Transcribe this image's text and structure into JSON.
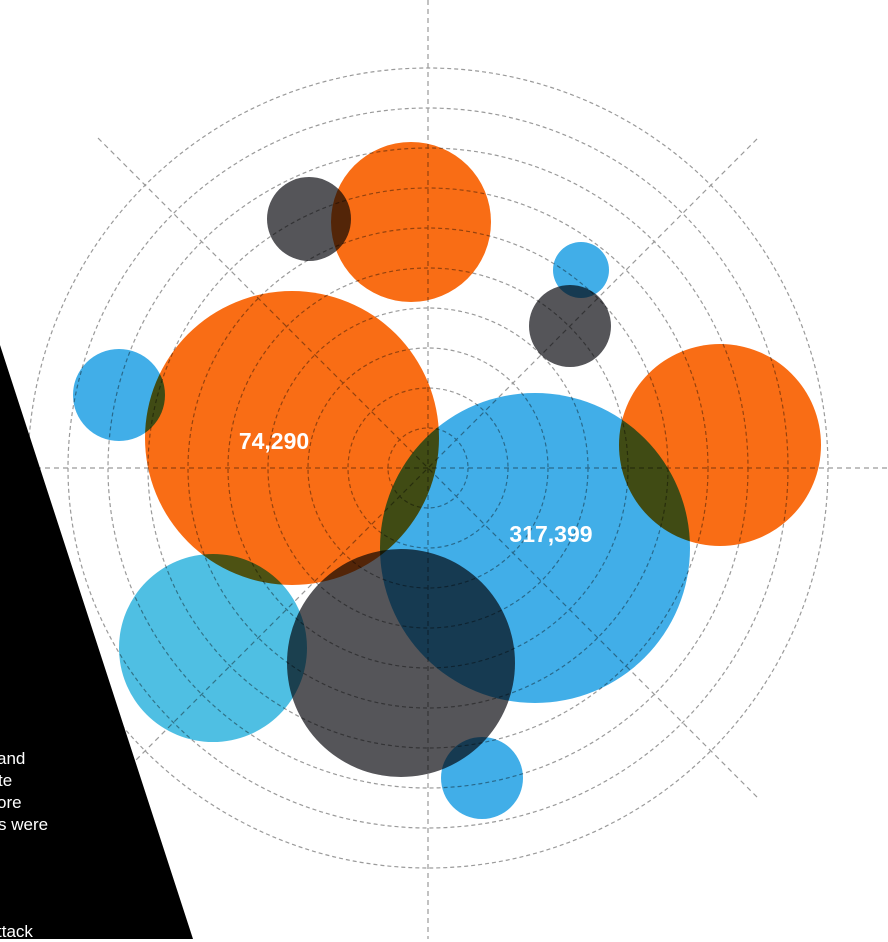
{
  "bubbles": [
    {
      "id": "orange-top",
      "color": "#f96d15",
      "label": ""
    },
    {
      "id": "grey-top-left",
      "color": "#555559",
      "label": ""
    },
    {
      "id": "blue-small-top",
      "color": "#41aee8",
      "label": ""
    },
    {
      "id": "grey-top-right",
      "color": "#555559",
      "label": ""
    },
    {
      "id": "blue-left",
      "color": "#41aee8",
      "label": ""
    },
    {
      "id": "orange-large-left",
      "color": "#f96d15",
      "label": "74,290"
    },
    {
      "id": "blue-large-center",
      "color": "#41aee8",
      "label": "317,399"
    },
    {
      "id": "orange-right",
      "color": "#f96d15",
      "label": ""
    },
    {
      "id": "cyan-bottom-left",
      "color": "#4fbfe3",
      "label": ""
    },
    {
      "id": "grey-bottom",
      "color": "#555559",
      "label": ""
    },
    {
      "id": "blue-small-bottom",
      "color": "#41aee8",
      "label": ""
    }
  ],
  "panel": {
    "text_lines": [
      "and",
      "te",
      "ore",
      "s were",
      "",
      "ttack"
    ]
  },
  "colors": {
    "orange": "#f96d15",
    "blue": "#41aee8",
    "cyan": "#4fbfe3",
    "grey": "#555559",
    "grid": "#9a9a9a",
    "panel": "#000000"
  }
}
